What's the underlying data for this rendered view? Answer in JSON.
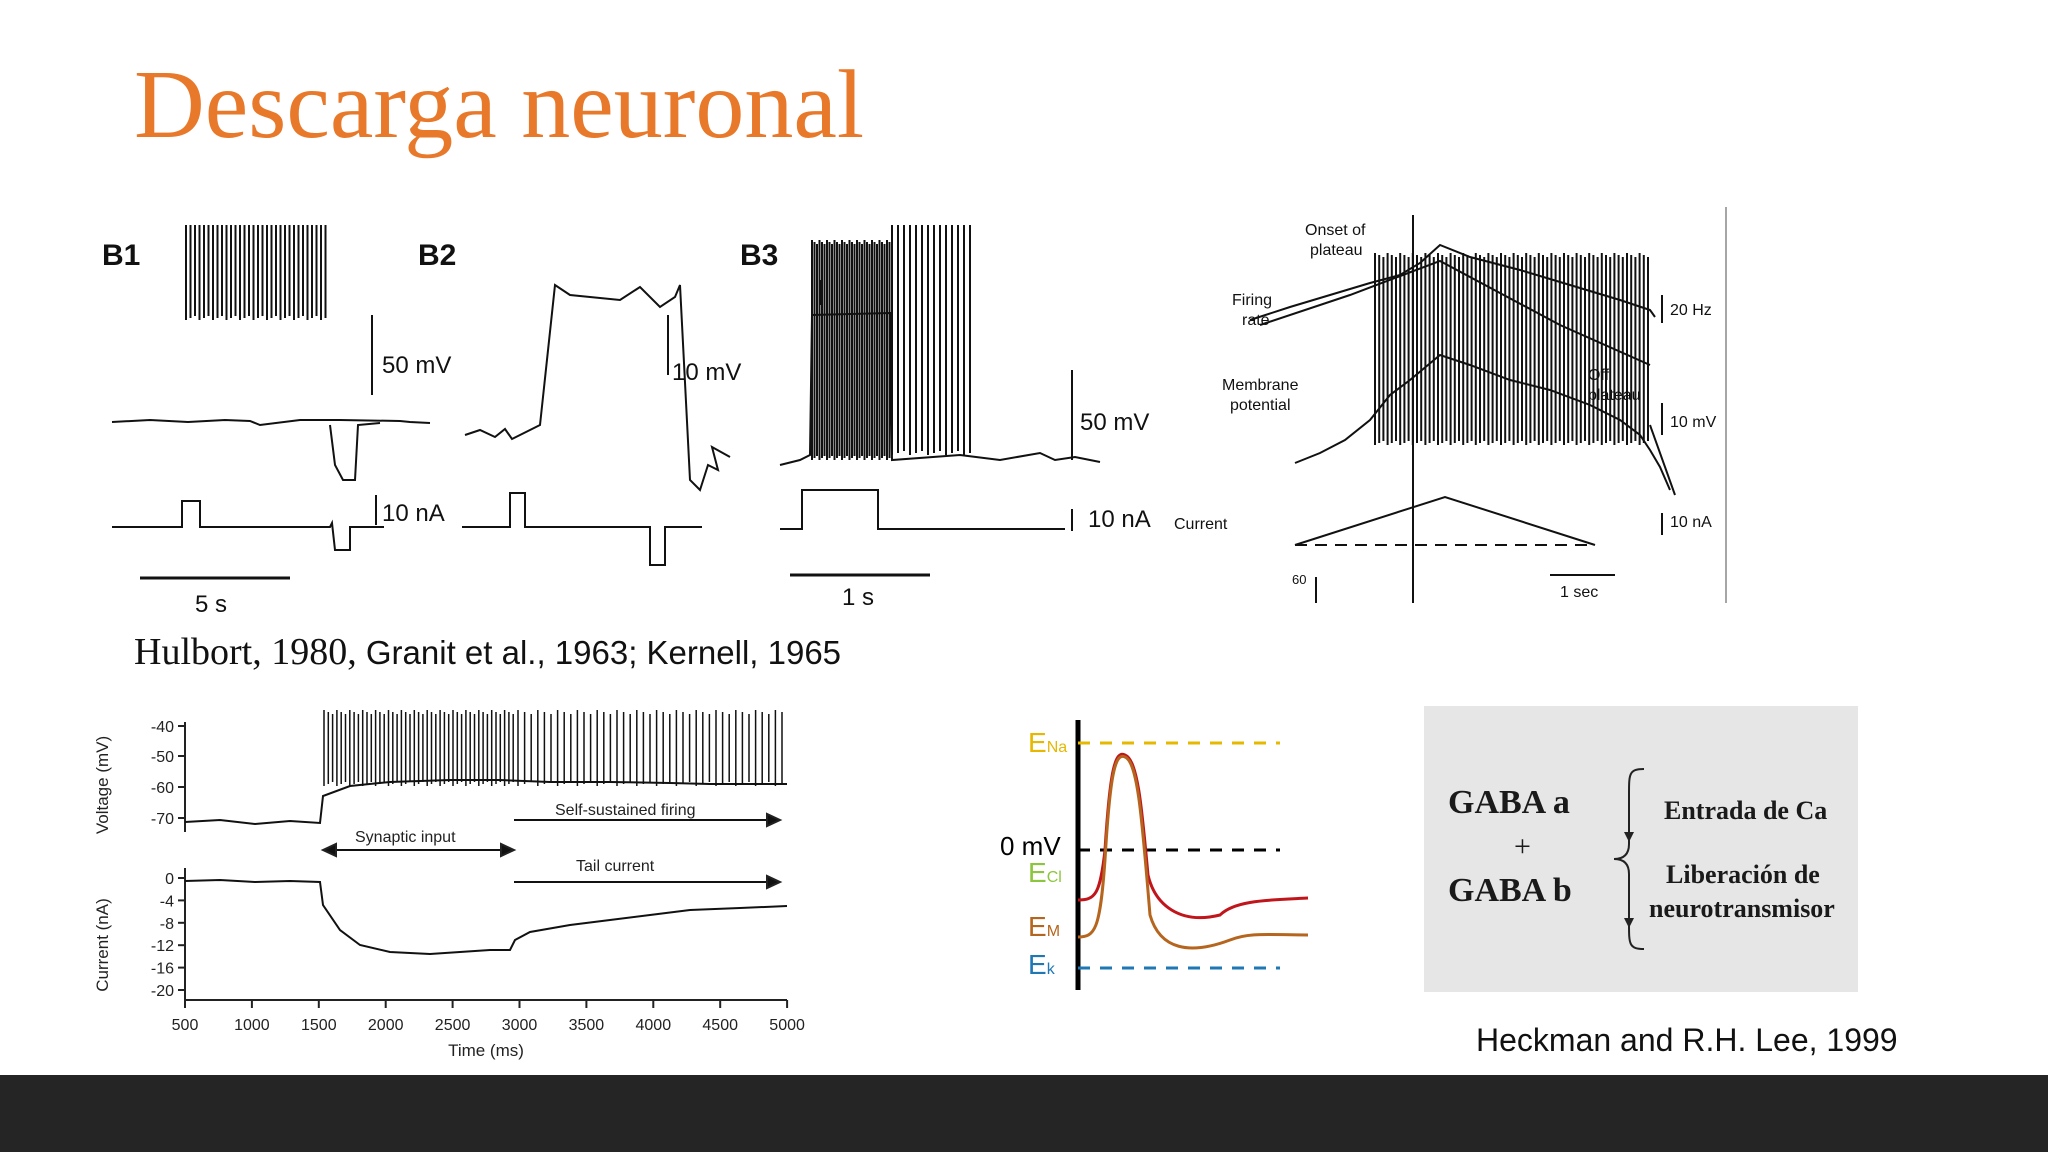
{
  "slide": {
    "title": "Descarga neuronal"
  },
  "fig_b": {
    "panels": [
      "B1",
      "B2",
      "B3"
    ],
    "b1_voltage_scale": "50 mV",
    "b1_current_scale": "10 nA",
    "b1_time_scale": "5 s",
    "b2_voltage_scale": "10 mV",
    "b3_voltage_scale": "50 mV",
    "b3_current_scale": "10 nA",
    "b3_time_scale": "1 s"
  },
  "fig_plateau": {
    "onset_label": [
      "Onset of",
      "plateau"
    ],
    "firing_rate_label": [
      "Firing",
      "rate"
    ],
    "membrane_label": [
      "Membrane",
      "potential"
    ],
    "off_label": [
      "Off",
      "plateau"
    ],
    "current_label": "Current",
    "rate_scale": "20 Hz",
    "voltage_scale": "10 mV",
    "current_scale": "10 nA",
    "time_scale": "1 sec",
    "tick_60": "60"
  },
  "citation_1": {
    "authors_serif": "Hulbort, 1980,",
    "authors_sans": " Granit et al., 1963; Kernell, 1965"
  },
  "fig_time": {
    "voltage_ylabel": "Voltage (mV)",
    "current_ylabel": "Current (nA)",
    "xlabel": "Time (ms)",
    "voltage_ticks": [
      "-40",
      "-50",
      "-60",
      "-70"
    ],
    "current_ticks": [
      "0",
      "-4",
      "-8",
      "-12",
      "-16",
      "-20"
    ],
    "x_ticks": [
      "500",
      "1000",
      "1500",
      "2000",
      "2500",
      "3000",
      "3500",
      "4000",
      "4500",
      "5000"
    ],
    "synaptic_label": "Synaptic input",
    "sustained_label": "Self-sustained firing",
    "tail_label": "Tail current"
  },
  "fig_potentials": {
    "ena_main": "E",
    "ena_sub": "Na",
    "zero_label": "0 mV",
    "ecl_main": "E",
    "ecl_sub": "Cl",
    "em_main": "E",
    "em_sub": "M",
    "ek_main": "E",
    "ek_sub": "k",
    "colors": {
      "na": "#e6b800",
      "cl": "#8cc63f",
      "m": "#b5651d",
      "k": "#1f77b4",
      "trace_red": "#c0151a"
    }
  },
  "gaba": {
    "line1": "GABA a",
    "plus": "+",
    "line2": "GABA b",
    "effect1": "Entrada de Ca",
    "effect2_line1": "Liberación de",
    "effect2_line2": "neurotransmisor"
  },
  "citation_2": "Heckman and R.H. Lee, 1999"
}
